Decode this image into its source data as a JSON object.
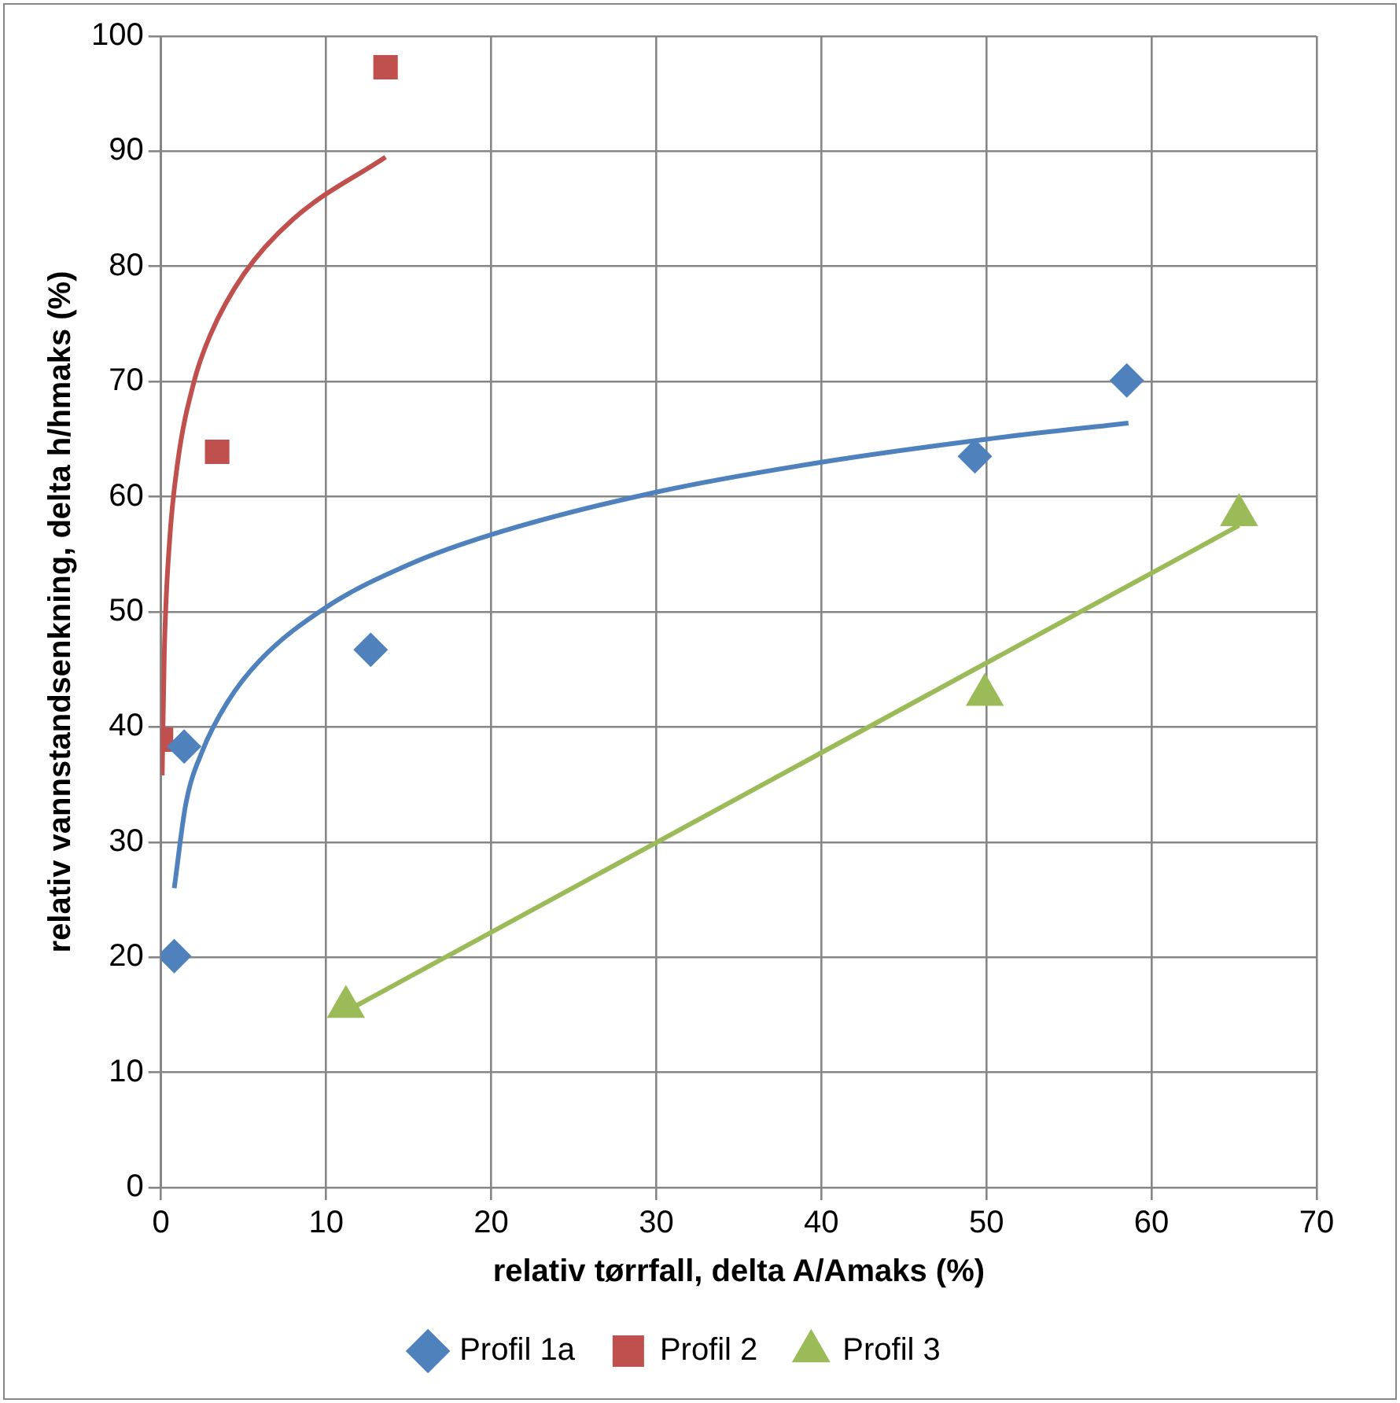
{
  "chart_data": {
    "type": "scatter",
    "xlabel": "relativ tørrfall, delta A/Amaks (%)",
    "ylabel": "relativ vannstandsenkning, delta h/hmaks (%)",
    "xlim": [
      0,
      70
    ],
    "xticks": [
      0,
      10,
      20,
      30,
      40,
      50,
      60,
      70
    ],
    "ylim": [
      0,
      100
    ],
    "yticks": [
      0,
      10,
      20,
      30,
      40,
      50,
      60,
      70,
      80,
      90,
      100
    ],
    "grid": true,
    "legend": "bottom",
    "series": [
      {
        "name": "Profil 1a",
        "color": "#4f81bd",
        "marker": "diamond",
        "x": [
          0.8,
          1.4,
          12.7,
          49.3,
          58.5
        ],
        "values": [
          20.1,
          38.3,
          46.7,
          63.5,
          70.1
        ]
      },
      {
        "name": "Profil 2",
        "color": "#c0504d",
        "marker": "square",
        "x": [
          0,
          3.4,
          13.6
        ],
        "values": [
          38.9,
          63.9,
          97.3
        ]
      },
      {
        "name": "Profil 3",
        "color": "#9bbb59",
        "marker": "triangle",
        "x": [
          11.2,
          49.9,
          65.3
        ],
        "values": [
          15.7,
          42.8,
          58.4
        ]
      },
      {
        "type": "line",
        "color": "#4f81bd",
        "marker": "none",
        "x": [
          0.8,
          1.5,
          2.5,
          4,
          6,
          10,
          15,
          20,
          30,
          40,
          50,
          58.6
        ],
        "values": [
          26,
          33.3,
          37.9,
          42.1,
          45.8,
          50.4,
          54.1,
          56.7,
          60.4,
          63,
          65,
          66.4
        ]
      },
      {
        "type": "line",
        "color": "#c0504d",
        "marker": "none",
        "x": [
          0.07,
          0.2,
          0.5,
          1,
          2,
          3,
          5,
          8,
          13.6
        ],
        "values": [
          35.8,
          46.5,
          55.8,
          62.9,
          70,
          74.1,
          79.3,
          84.1,
          89.5
        ]
      },
      {
        "type": "line",
        "color": "#9bbb59",
        "marker": "none",
        "x": [
          11.2,
          65.3
        ],
        "values": [
          15.3,
          57.5
        ]
      }
    ]
  }
}
